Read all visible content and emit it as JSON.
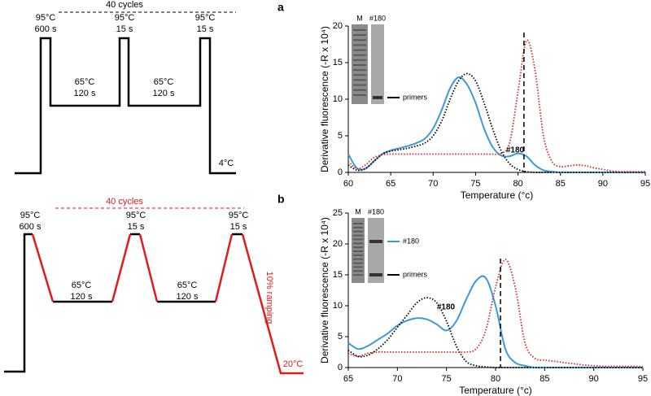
{
  "panel_labels": [
    "a",
    "b"
  ],
  "protocols": [
    {
      "cycles": "40 cycles",
      "color": "#000000",
      "steps": [
        {
          "temp": "95°C",
          "time": "600 s"
        },
        {
          "temp": "65°C",
          "time": "120 s"
        },
        {
          "temp": "95°C",
          "time": "15 s"
        },
        {
          "temp": "65°C",
          "time": "120 s"
        },
        {
          "temp": "95°C",
          "time": "15 s"
        }
      ],
      "hold": "4°C"
    },
    {
      "cycles": "40 cycles",
      "color": "#e31a1c",
      "steps": [
        {
          "temp": "95°C",
          "time": "600 s"
        },
        {
          "temp": "65°C",
          "time": "120 s"
        },
        {
          "temp": "95°C",
          "time": "15 s"
        },
        {
          "temp": "65°C",
          "time": "120 s"
        },
        {
          "temp": "95°C",
          "time": "15 s"
        }
      ],
      "hold": "20°C",
      "ramp": "10% ramping"
    }
  ],
  "chart_data": [
    {
      "type": "line",
      "xlabel": "Temperature (°c)",
      "ylabel": "Derivative fluorescence (-R x 10⁴)",
      "x": [
        60,
        61,
        62,
        63,
        64,
        65,
        66,
        67,
        68,
        69,
        70,
        71,
        72,
        73,
        74,
        75,
        76,
        77,
        78,
        79,
        80,
        81,
        82,
        83,
        84,
        85,
        86,
        87,
        88,
        89,
        90,
        91,
        92,
        93,
        94,
        95
      ],
      "xlim": [
        60,
        95
      ],
      "xticks": [
        60,
        65,
        70,
        75,
        80,
        85,
        90,
        95
      ],
      "ylim": [
        0,
        20
      ],
      "yticks": [
        0,
        5,
        10,
        15,
        20
      ],
      "vline": 80.7,
      "annotation": "#180",
      "inset": {
        "lanes": [
          "M",
          "#180"
        ],
        "bands": [
          {
            "label": "primers",
            "color": "#000000"
          }
        ]
      },
      "series": [
        {
          "color": "#3a9ad9",
          "style": "solid",
          "values": [
            2.5,
            0.6,
            0.5,
            1.5,
            2.5,
            3,
            3.3,
            3.6,
            4,
            4.6,
            6,
            8.5,
            11.5,
            13,
            12,
            9.5,
            6,
            3.5,
            2.3,
            2.2,
            2.6,
            2.2,
            1,
            0.3,
            0.1,
            0,
            0,
            0,
            0,
            0,
            0,
            0,
            0,
            0,
            0,
            0
          ]
        },
        {
          "color": "#000000",
          "style": "dotted",
          "values": [
            1,
            0.3,
            0.5,
            1.5,
            2.5,
            2.9,
            3.1,
            3.3,
            3.6,
            4,
            5,
            7,
            10,
            12.5,
            13.5,
            12.5,
            9.5,
            6,
            3,
            1.2,
            0.4,
            0.1,
            0,
            0,
            0,
            0,
            0,
            0,
            0,
            0,
            0,
            0,
            0,
            0,
            0,
            0
          ]
        },
        {
          "color": "#d62728",
          "style": "dotted",
          "values": [
            1.5,
            0.5,
            1,
            2,
            2.4,
            2.5,
            2.5,
            2.5,
            2.5,
            2.5,
            2.5,
            2.5,
            2.5,
            2.5,
            2.5,
            2.5,
            2.5,
            2.5,
            2.6,
            4,
            11,
            18,
            14,
            5,
            1.5,
            0.8,
            0.9,
            1,
            0.9,
            0.6,
            0.4,
            0.2,
            0.1,
            0.1,
            0.1,
            0.1
          ]
        }
      ]
    },
    {
      "type": "line",
      "xlabel": "Temperature (°c)",
      "ylabel": "Derivative fluorescence (-R x 10⁴)",
      "x": [
        65,
        66,
        67,
        68,
        69,
        70,
        71,
        72,
        73,
        74,
        75,
        76,
        77,
        78,
        79,
        80,
        81,
        82,
        83,
        84,
        85,
        86,
        87,
        88,
        89,
        90,
        91,
        92,
        93,
        94,
        95
      ],
      "xlim": [
        65,
        95
      ],
      "xticks": [
        65,
        70,
        75,
        80,
        85,
        90,
        95
      ],
      "ylim": [
        0,
        25
      ],
      "yticks": [
        0,
        5,
        10,
        15,
        20,
        25
      ],
      "vline": 80.5,
      "annotation": "#180",
      "inset": {
        "lanes": [
          "M",
          "#180"
        ],
        "bands": [
          {
            "label": "#180",
            "color": "#3a9ad9"
          },
          {
            "label": "primers",
            "color": "#000000"
          }
        ]
      },
      "series": [
        {
          "color": "#3a9ad9",
          "style": "solid",
          "values": [
            4,
            3,
            3.5,
            4.5,
            5.5,
            6.8,
            7.6,
            8,
            7.8,
            7,
            6,
            7.5,
            11,
            14,
            14.5,
            10,
            3,
            0.8,
            0.3,
            0,
            0,
            0,
            0,
            0,
            0,
            0,
            0,
            0,
            0,
            0,
            0
          ]
        },
        {
          "color": "#000000",
          "style": "dotted",
          "values": [
            2.8,
            1.8,
            2,
            3,
            4.5,
            6.5,
            8.5,
            10.5,
            11.3,
            10.5,
            7.5,
            3.5,
            1,
            0.3,
            0.1,
            0,
            0,
            0,
            0,
            0,
            0,
            0,
            0,
            0,
            0,
            0,
            0,
            0,
            0,
            0,
            0
          ]
        },
        {
          "color": "#d62728",
          "style": "dotted",
          "values": [
            2.3,
            1.8,
            2.3,
            2.5,
            2.5,
            2.5,
            2.5,
            2.5,
            2.5,
            2.5,
            2.5,
            2.5,
            2.5,
            3,
            6,
            13,
            17.5,
            13,
            4,
            1.5,
            1.2,
            1,
            0.8,
            0.6,
            0.4,
            0.3,
            0.2,
            0.2,
            0.2,
            0.2,
            0.2
          ]
        }
      ]
    }
  ]
}
